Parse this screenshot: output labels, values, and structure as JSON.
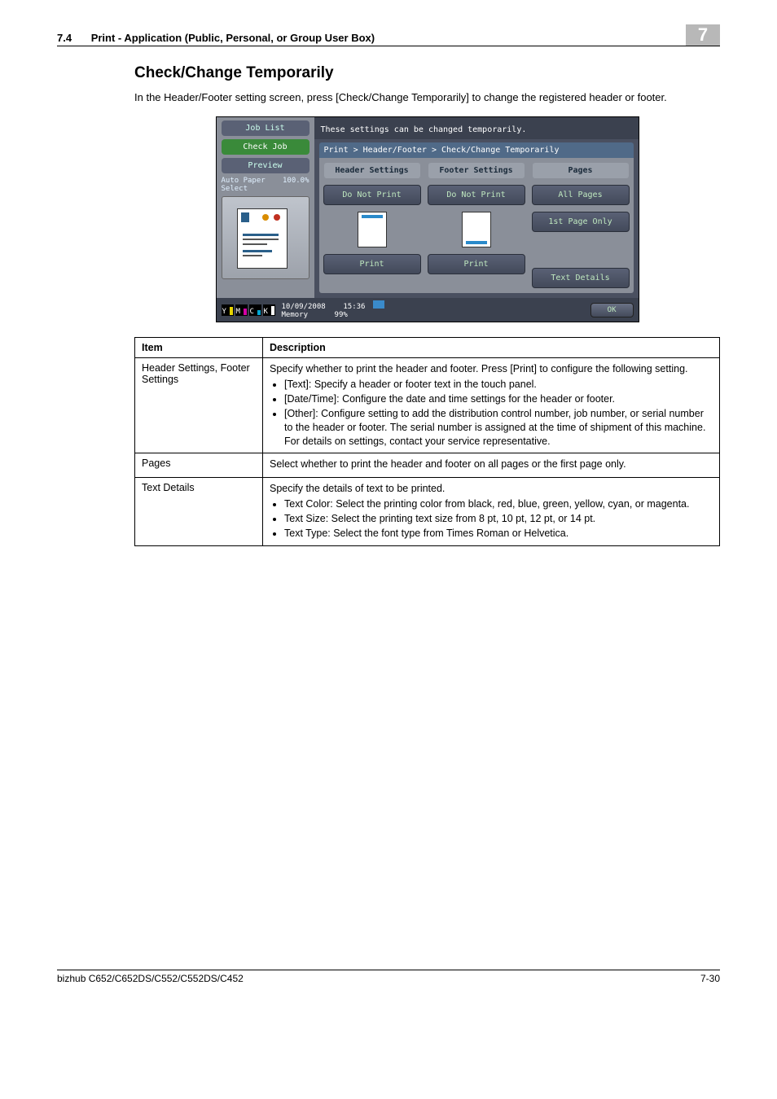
{
  "header": {
    "section_number": "7.4",
    "section_title": "Print - Application (Public, Personal, or Group User Box)",
    "chapter_number": "7"
  },
  "heading": "Check/Change Temporarily",
  "intro": "In the Header/Footer setting screen, press [Check/Change Temporarily] to change the registered header or footer.",
  "screenshot": {
    "left": {
      "job_list": "Job List",
      "check_job": "Check Job",
      "preview": "Preview",
      "paper_label": "Auto Paper\nSelect",
      "paper_value": "100.0%"
    },
    "message": "These settings can be changed temporarily.",
    "breadcrumb": "Print > Header/Footer > Check/Change Temporarily",
    "col_header_settings": "Header Settings",
    "col_footer_settings": "Footer Settings",
    "col_pages": "Pages",
    "do_not_print": "Do Not Print",
    "print": "Print",
    "all_pages": "All Pages",
    "first_page_only": "1st Page Only",
    "text_details": "Text Details",
    "date": "10/09/2008",
    "time": "15:36",
    "memory_label": "Memory",
    "memory_value": "99%",
    "ok": "OK",
    "toner": {
      "y": "Y",
      "m": "M",
      "c": "C",
      "k": "K"
    }
  },
  "table": {
    "head_item": "Item",
    "head_desc": "Description",
    "rows": [
      {
        "item": "Header Settings, Footer Settings",
        "lead": "Specify whether to print the header and footer. Press [Print] to configure the following setting.",
        "bullets": [
          "[Text]: Specify a header or footer text in the touch panel.",
          "[Date/Time]: Configure the date and time settings for the header or footer.",
          "[Other]: Configure setting to add the distribution control number, job number, or serial number to the header or footer. The serial number is assigned at the time of shipment of this machine. For details on settings, contact your service representative."
        ]
      },
      {
        "item": "Pages",
        "lead": "Select whether to print the header and footer on all pages or the first page only.",
        "bullets": []
      },
      {
        "item": "Text Details",
        "lead": "Specify the details of text to be printed.",
        "bullets": [
          "Text Color: Select the printing color from black, red, blue, green, yellow, cyan, or magenta.",
          "Text Size: Select the printing text size from 8 pt, 10 pt, 12 pt, or 14 pt.",
          "Text Type: Select the font type from Times Roman or Helvetica."
        ]
      }
    ]
  },
  "footer": {
    "model": "bizhub C652/C652DS/C552/C552DS/C452",
    "page": "7-30"
  }
}
